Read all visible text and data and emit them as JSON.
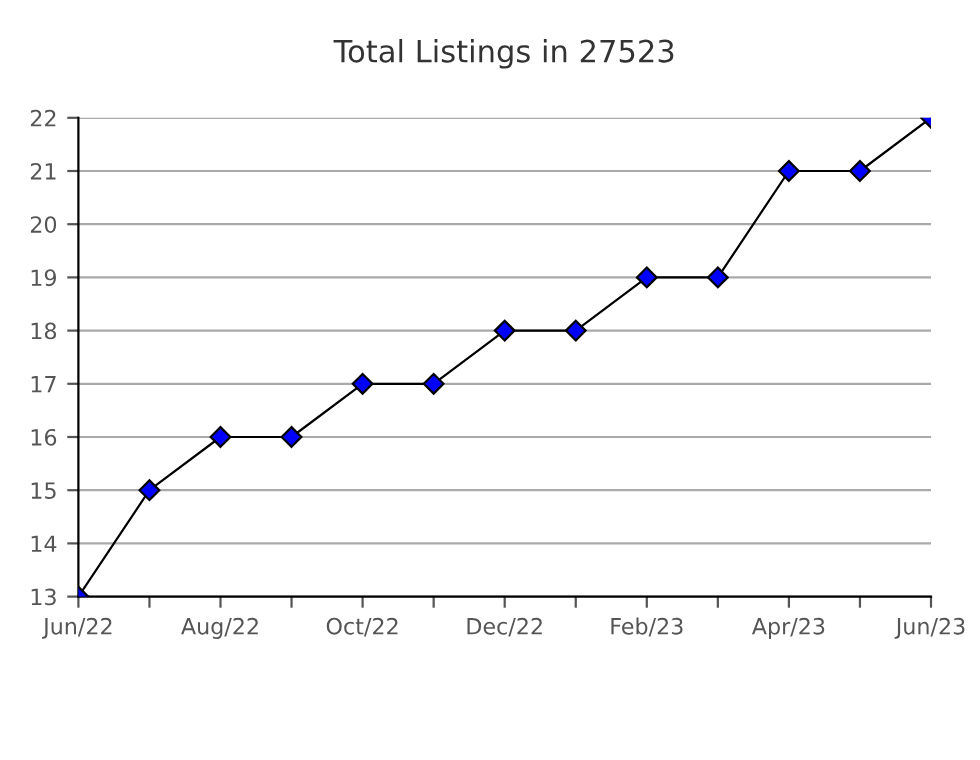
{
  "chart_data": {
    "type": "line",
    "title": "Total Listings in 27523",
    "categories": [
      "Jun/22",
      null,
      "Aug/22",
      null,
      "Oct/22",
      null,
      "Dec/22",
      null,
      "Feb/23",
      null,
      "Apr/23",
      null,
      "Jun/23"
    ],
    "series": [
      {
        "color": "#0000ff",
        "values": [
          13,
          15,
          16,
          16,
          17,
          17,
          18,
          18,
          19,
          19,
          21,
          21,
          22
        ]
      }
    ],
    "ylim": [
      13,
      22
    ],
    "yticks": [
      13,
      14,
      15,
      16,
      17,
      18,
      19,
      20,
      21,
      22
    ],
    "grid": "y",
    "marker": "diamond",
    "line_style": "solid",
    "legend": false
  }
}
